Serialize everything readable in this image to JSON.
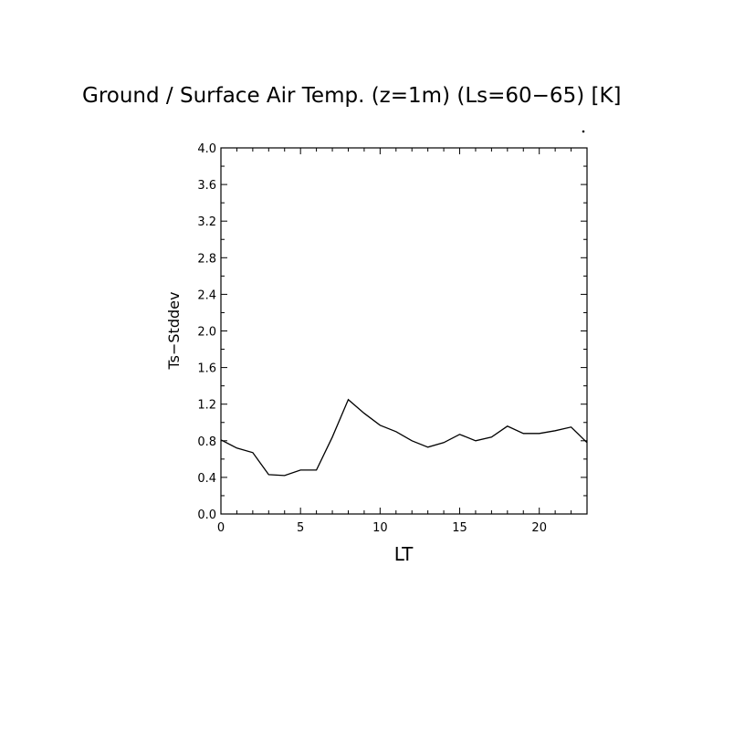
{
  "chart_data": {
    "type": "line",
    "title": "Ground / Surface Air Temp. (z=1m) (Ls=60−65) [K]",
    "xlabel": "LT",
    "ylabel": "Ts−Stddev",
    "xlim": [
      0,
      23
    ],
    "ylim": [
      0,
      4.0
    ],
    "x_ticks": [
      "0",
      "5",
      "10",
      "15",
      "20"
    ],
    "y_ticks": [
      "0.0",
      "0.4",
      "0.8",
      "1.2",
      "1.6",
      "2.0",
      "2.4",
      "2.8",
      "3.2",
      "3.6",
      "4.0"
    ],
    "grid": false,
    "color": "#000000",
    "series": [
      {
        "x": [
          0,
          1,
          2,
          3,
          4,
          5,
          6,
          7,
          8,
          9,
          10,
          11,
          12,
          13,
          14,
          15,
          16,
          17,
          18,
          19,
          20,
          21,
          22,
          23
        ],
        "values": [
          0.81,
          0.72,
          0.67,
          0.43,
          0.42,
          0.48,
          0.48,
          0.84,
          1.25,
          1.1,
          0.97,
          0.9,
          0.8,
          0.73,
          0.78,
          0.87,
          0.8,
          0.84,
          0.96,
          0.88,
          0.88,
          0.91,
          0.95,
          0.78
        ]
      }
    ]
  }
}
